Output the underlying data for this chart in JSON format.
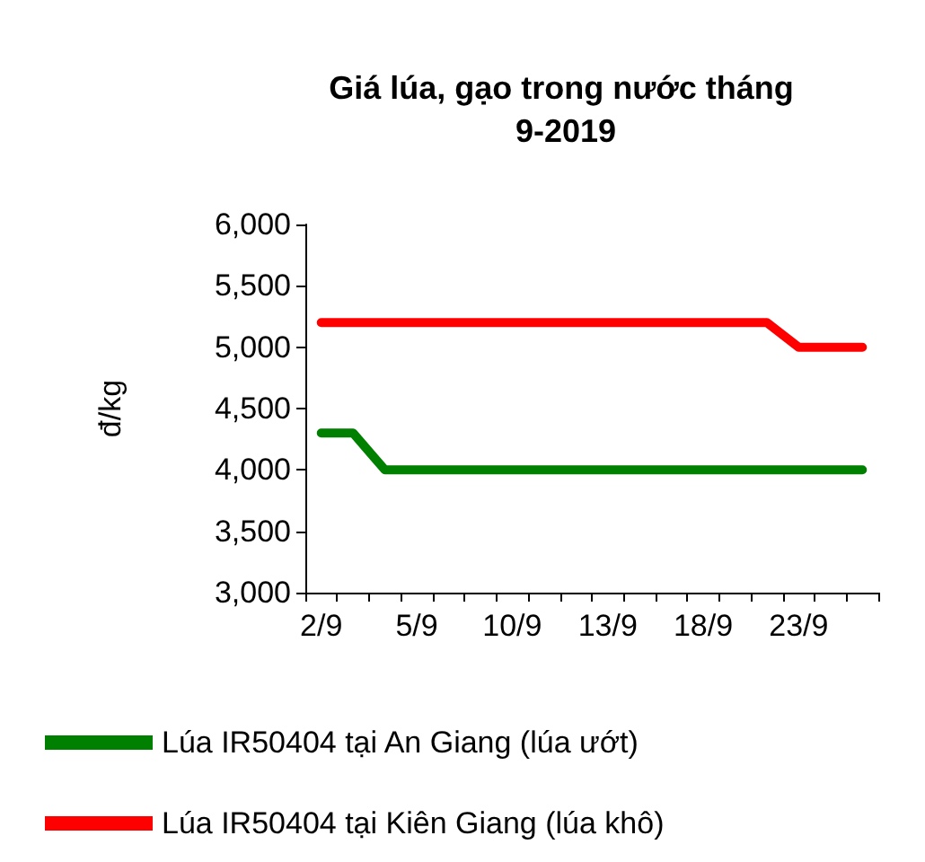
{
  "chart_data": {
    "type": "line",
    "title": "Giá lúa, gạo trong nước tháng 9-2019",
    "ylabel": "đ/kg",
    "categories": [
      "2/9",
      null,
      null,
      "5/9",
      null,
      null,
      "10/9",
      null,
      null,
      "13/9",
      null,
      null,
      "18/9",
      null,
      null,
      "23/9",
      null,
      null
    ],
    "series": [
      {
        "name": "Lúa IR50404 tại An Giang (lúa ướt)",
        "color": "#008000",
        "values": [
          4300,
          4300,
          4000,
          4000,
          4000,
          4000,
          4000,
          4000,
          4000,
          4000,
          4000,
          4000,
          4000,
          4000,
          4000,
          4000,
          4000,
          4000
        ]
      },
      {
        "name": "Lúa IR50404 tại Kiên Giang (lúa khô)",
        "color": "#ff0000",
        "values": [
          5200,
          5200,
          5200,
          5200,
          5200,
          5200,
          5200,
          5200,
          5200,
          5200,
          5200,
          5200,
          5200,
          5200,
          5200,
          5000,
          5000,
          5000
        ]
      }
    ],
    "ylim": [
      3000,
      6000
    ],
    "yticks": [
      {
        "value": 3000,
        "label": "3,000"
      },
      {
        "value": 3500,
        "label": "3,500"
      },
      {
        "value": 4000,
        "label": "4,000"
      },
      {
        "value": 4500,
        "label": "4,500"
      },
      {
        "value": 5000,
        "label": "5,000"
      },
      {
        "value": 5500,
        "label": "5,500"
      },
      {
        "value": 6000,
        "label": "6,000"
      }
    ],
    "grid": false,
    "legend": "bottom",
    "marker": "none",
    "line_style": "solid"
  }
}
